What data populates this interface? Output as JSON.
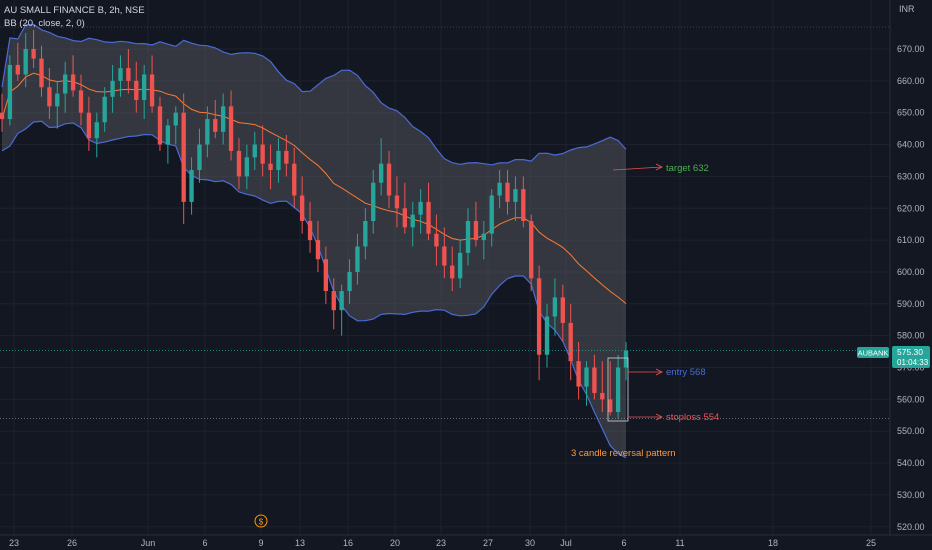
{
  "header": {
    "symbol_line": "AU SMALL FINANCE B, 2h, NSE",
    "indicator_line": "BB (20, close, 2, 0)"
  },
  "currency": "INR",
  "price_tag": {
    "ticker": "AUBANK",
    "price": "575.30",
    "countdown": "01:04:33"
  },
  "colors": {
    "background": "#131722",
    "up": "#26a69a",
    "down": "#ef5350",
    "band": "#4a6bd6",
    "basis": "#ff7a2f",
    "band_fill": "#5d5f66"
  },
  "chart_data": {
    "type": "candlestick",
    "title": "",
    "ylim": [
      518,
      678
    ],
    "y_ticks": [
      520,
      530,
      540,
      550,
      560,
      570,
      580,
      590,
      600,
      610,
      620,
      630,
      640,
      650,
      660,
      670
    ],
    "x_ticks": [
      "23",
      "26",
      "Jun",
      "6",
      "9",
      "13",
      "16",
      "20",
      "23",
      "27",
      "30",
      "Jul",
      "6",
      "11",
      "18",
      "25"
    ],
    "current_price": 575.3,
    "ohlc_approx": [
      [
        650,
        656,
        644,
        648
      ],
      [
        648,
        668,
        646,
        665
      ],
      [
        665,
        672,
        660,
        662
      ],
      [
        662,
        675,
        658,
        670
      ],
      [
        670,
        676,
        664,
        667
      ],
      [
        667,
        671,
        655,
        658
      ],
      [
        658,
        664,
        648,
        652
      ],
      [
        652,
        660,
        645,
        656
      ],
      [
        656,
        666,
        650,
        662
      ],
      [
        662,
        668,
        655,
        657
      ],
      [
        657,
        662,
        646,
        650
      ],
      [
        650,
        655,
        638,
        642
      ],
      [
        642,
        650,
        636,
        647
      ],
      [
        647,
        658,
        644,
        655
      ],
      [
        655,
        665,
        650,
        660
      ],
      [
        660,
        668,
        655,
        664
      ],
      [
        664,
        670,
        656,
        660
      ],
      [
        660,
        666,
        650,
        654
      ],
      [
        654,
        665,
        648,
        662
      ],
      [
        662,
        668,
        650,
        652
      ],
      [
        652,
        655,
        638,
        640
      ],
      [
        640,
        648,
        634,
        646
      ],
      [
        646,
        652,
        640,
        650
      ],
      [
        650,
        656,
        615,
        622
      ],
      [
        622,
        636,
        618,
        632
      ],
      [
        632,
        645,
        628,
        640
      ],
      [
        640,
        652,
        636,
        648
      ],
      [
        648,
        654,
        642,
        644
      ],
      [
        644,
        656,
        640,
        652
      ],
      [
        652,
        657,
        635,
        638
      ],
      [
        638,
        642,
        626,
        630
      ],
      [
        630,
        640,
        626,
        636
      ],
      [
        636,
        644,
        632,
        640
      ],
      [
        640,
        646,
        630,
        634
      ],
      [
        634,
        640,
        626,
        632
      ],
      [
        632,
        642,
        628,
        638
      ],
      [
        638,
        643,
        630,
        634
      ],
      [
        634,
        639,
        620,
        624
      ],
      [
        624,
        630,
        612,
        616
      ],
      [
        616,
        622,
        606,
        610
      ],
      [
        610,
        616,
        600,
        604
      ],
      [
        604,
        608,
        590,
        594
      ],
      [
        594,
        598,
        582,
        588
      ],
      [
        588,
        596,
        580,
        594
      ],
      [
        594,
        604,
        590,
        600
      ],
      [
        600,
        612,
        596,
        608
      ],
      [
        608,
        620,
        604,
        616
      ],
      [
        616,
        632,
        612,
        628
      ],
      [
        628,
        642,
        624,
        634
      ],
      [
        634,
        638,
        620,
        624
      ],
      [
        624,
        630,
        614,
        620
      ],
      [
        620,
        628,
        612,
        614
      ],
      [
        614,
        622,
        608,
        618
      ],
      [
        618,
        626,
        612,
        622
      ],
      [
        622,
        628,
        610,
        612
      ],
      [
        612,
        618,
        602,
        608
      ],
      [
        608,
        614,
        598,
        602
      ],
      [
        602,
        608,
        594,
        598
      ],
      [
        598,
        610,
        595,
        606
      ],
      [
        606,
        620,
        602,
        616
      ],
      [
        616,
        622,
        608,
        610
      ],
      [
        610,
        616,
        604,
        612
      ],
      [
        612,
        626,
        608,
        624
      ],
      [
        624,
        632,
        620,
        628
      ],
      [
        628,
        632,
        618,
        622
      ],
      [
        622,
        630,
        616,
        626
      ],
      [
        626,
        630,
        614,
        616
      ],
      [
        616,
        618,
        594,
        598
      ],
      [
        598,
        602,
        566,
        574
      ],
      [
        574,
        590,
        570,
        586
      ],
      [
        586,
        598,
        580,
        592
      ],
      [
        592,
        596,
        578,
        584
      ],
      [
        584,
        590,
        566,
        572
      ],
      [
        572,
        578,
        560,
        564
      ],
      [
        564,
        572,
        558,
        570
      ],
      [
        570,
        574,
        560,
        562
      ],
      [
        562,
        572,
        556,
        560
      ],
      [
        560,
        572,
        555,
        556
      ],
      [
        556,
        574,
        554,
        570
      ],
      [
        570,
        578,
        566,
        575.3
      ]
    ]
  },
  "annotations": {
    "target": "target 632",
    "entry": "entry 568",
    "stoploss": "stoploss 554",
    "pattern": "3 candle reversal pattern"
  }
}
